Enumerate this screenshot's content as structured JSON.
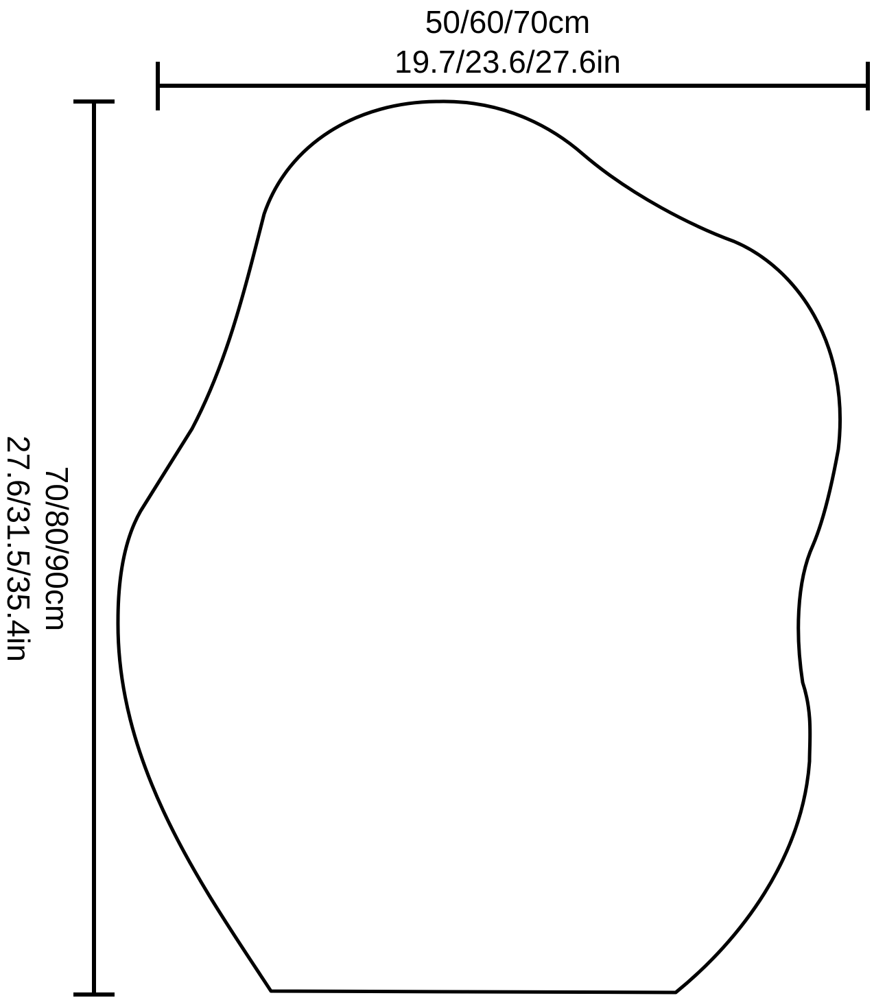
{
  "width_label": {
    "cm": "50/60/70cm",
    "in": "19.7/23.6/27.6in"
  },
  "height_label": {
    "cm": "70/80/90cm",
    "in": "27.6/31.5/35.4in"
  },
  "colors": {
    "stroke": "#000000",
    "background": "#ffffff"
  }
}
